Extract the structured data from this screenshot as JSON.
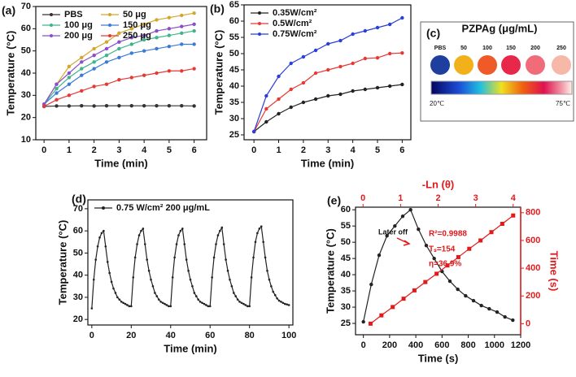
{
  "chart_data": [
    {
      "type": "line",
      "panel": "(a)",
      "xlabel": "Time (min)",
      "ylabel": "Temperature (°C)",
      "x": [
        0,
        0.5,
        1,
        1.5,
        2,
        2.5,
        3,
        3.5,
        4,
        4.5,
        5,
        5.5,
        6
      ],
      "xlim": [
        -0.33,
        6.5
      ],
      "xticks": [
        0,
        1,
        2,
        3,
        4,
        5,
        6
      ],
      "ylim": [
        10,
        70
      ],
      "yticks": [
        10,
        20,
        30,
        40,
        50,
        60,
        70
      ],
      "legend": "upper left",
      "series": [
        {
          "name": "PBS",
          "color": "#333333",
          "values": [
            25,
            25.2,
            25.2,
            25.3,
            25.2,
            25.3,
            25.3,
            25.3,
            25.3,
            25.3,
            25.3,
            25.3,
            25.2
          ]
        },
        {
          "name": "50 μg",
          "color": "#d4a62a",
          "values": [
            26,
            35,
            43,
            47,
            51,
            54,
            58,
            60,
            62,
            64,
            65,
            66,
            67
          ]
        },
        {
          "name": "100 μg",
          "color": "#3fb38a",
          "values": [
            26,
            33,
            38,
            42,
            45,
            48,
            51,
            53,
            55,
            56,
            57,
            58,
            59
          ]
        },
        {
          "name": "150 μg",
          "color": "#3a7bd5",
          "values": [
            26,
            31,
            35,
            39,
            42,
            45,
            47,
            49,
            50,
            51,
            52,
            53,
            53
          ]
        },
        {
          "name": "200 μg",
          "color": "#8a4fc8",
          "values": [
            26,
            35,
            40,
            45,
            48,
            51,
            54,
            56,
            57,
            59,
            60,
            61,
            62
          ]
        },
        {
          "name": "250 μg",
          "color": "#e53935",
          "values": [
            25,
            28,
            30,
            32,
            34,
            35,
            37,
            38,
            39,
            40,
            41,
            41,
            42
          ]
        }
      ]
    },
    {
      "type": "line",
      "panel": "(b)",
      "xlabel": "Time (min)",
      "ylabel": "Temperature (°C)",
      "x": [
        0,
        0.5,
        1,
        1.5,
        2,
        2.5,
        3,
        3.5,
        4,
        4.5,
        5,
        5.5,
        6
      ],
      "xlim": [
        -0.4,
        6.35
      ],
      "xticks": [
        0,
        1,
        2,
        3,
        4,
        5,
        6
      ],
      "ylim": [
        23.5,
        65
      ],
      "yticks": [
        25,
        30,
        35,
        40,
        45,
        50,
        55,
        60,
        65
      ],
      "legend": "upper left",
      "series": [
        {
          "name": "0.35W/cm²",
          "color": "#222222",
          "values": [
            26,
            29,
            31.5,
            33.5,
            35,
            36,
            37,
            37.5,
            38.5,
            39,
            39.5,
            40,
            40.5
          ]
        },
        {
          "name": "0.5W/cm²",
          "color": "#e53935",
          "values": [
            26,
            33,
            36,
            39,
            41,
            44,
            45,
            46,
            47,
            48.5,
            48.7,
            50,
            50.2
          ]
        },
        {
          "name": "0.75W/cm²",
          "color": "#2b3fd6",
          "values": [
            26,
            37,
            43,
            47,
            49,
            51,
            53,
            54,
            56,
            57,
            58,
            59,
            61
          ]
        }
      ]
    },
    {
      "type": "line",
      "panel": "(d)",
      "xlabel": "Time (min)",
      "ylabel": "Temperature (°C)",
      "x": [
        0,
        1,
        2,
        3,
        4,
        5,
        6,
        7,
        8,
        9,
        10,
        11,
        12,
        13,
        14,
        15,
        16,
        17,
        18,
        19,
        20,
        21,
        22,
        23,
        24,
        25,
        26,
        27,
        28,
        29,
        30,
        31,
        32,
        33,
        34,
        35,
        36,
        37,
        38,
        39,
        40,
        41,
        42,
        43,
        44,
        45,
        46,
        47,
        48,
        49,
        50,
        51,
        52,
        53,
        54,
        55,
        56,
        57,
        58,
        59,
        60,
        61,
        62,
        63,
        64,
        65,
        66,
        67,
        68,
        69,
        70,
        71,
        72,
        73,
        74,
        75,
        76,
        77,
        78,
        79,
        80,
        81,
        82,
        83,
        84,
        85,
        86,
        87,
        88,
        89,
        90,
        91,
        92,
        93,
        94,
        95,
        96,
        97,
        98,
        99,
        100
      ],
      "xlim": [
        -2,
        102
      ],
      "xticks": [
        0,
        20,
        40,
        60,
        80,
        100
      ],
      "ylim": [
        17.5,
        74
      ],
      "yticks": [
        20,
        30,
        40,
        50,
        60,
        70
      ],
      "legend": "upper left",
      "series": [
        {
          "name": "0.75 W/cm² 200 μg/mL",
          "color": "#222222",
          "values": [
            25,
            38,
            47,
            53,
            57,
            59,
            60,
            53,
            46,
            41,
            37,
            34,
            32,
            30,
            29,
            28,
            27.5,
            27,
            26.5,
            26,
            26,
            39,
            48,
            54,
            58,
            60,
            61,
            54,
            47,
            42,
            38,
            35,
            32,
            30.5,
            29,
            28,
            27.5,
            27,
            26.5,
            26,
            26,
            39,
            48,
            54,
            58,
            60,
            61,
            54,
            47,
            42,
            38,
            35,
            32,
            30.5,
            29,
            28,
            27.5,
            27,
            26.5,
            26,
            26,
            39,
            48,
            54,
            58,
            60,
            61.5,
            54,
            47,
            42,
            38,
            35,
            32,
            30.5,
            29,
            28,
            27.5,
            27,
            26.5,
            26,
            26,
            39,
            48,
            55,
            59,
            61,
            62,
            55,
            48,
            42,
            38,
            35,
            32.5,
            31,
            29.5,
            28.5,
            28,
            27.5,
            27,
            26.8,
            26.5
          ]
        }
      ]
    },
    {
      "type": "line",
      "panel": "(e)",
      "xlabel": "Time (s)",
      "ylabel": "Temperature (°C)",
      "x2label": "-Ln (θ)",
      "y2label": "Time (s)",
      "xlim": [
        -60,
        1200
      ],
      "xticks": [
        0,
        200,
        400,
        600,
        800,
        1000,
        1200
      ],
      "ylim": [
        21.5,
        60.8
      ],
      "yticks": [
        25,
        30,
        35,
        40,
        45,
        50,
        55,
        60
      ],
      "x2lim": [
        -0.2,
        4.2
      ],
      "x2ticks": [
        0,
        1,
        2,
        3,
        4
      ],
      "y2lim": [
        -80,
        840
      ],
      "y2ticks": [
        0,
        200,
        400,
        600,
        800
      ],
      "axis_color2": "#e31a1c",
      "annotations": [
        "Later off",
        "R²=0.9988",
        "Tₛ=154",
        "η=36.9%"
      ],
      "series": [
        {
          "color": "#222222",
          "x": [
            0,
            60,
            120,
            180,
            240,
            300,
            360,
            420,
            480,
            540,
            600,
            660,
            720,
            780,
            840,
            900,
            960,
            1020,
            1080,
            1140
          ],
          "values": [
            25.5,
            37,
            46,
            52,
            55,
            58,
            60,
            54,
            49,
            45,
            41,
            38,
            35.5,
            33.5,
            32,
            30.5,
            29.5,
            28.5,
            27,
            26
          ]
        },
        {
          "color": "#e31a1c",
          "axis": "y2",
          "xaxis": "x2",
          "marker": "square",
          "x": [
            0.2,
            0.49,
            0.79,
            1.08,
            1.37,
            1.66,
            1.96,
            2.25,
            2.54,
            2.83,
            3.13,
            3.42,
            3.71,
            4.0
          ],
          "values": [
            0,
            60,
            120,
            180,
            240,
            300,
            360,
            420,
            480,
            540,
            600,
            660,
            720,
            780
          ]
        }
      ]
    }
  ],
  "panel_c": {
    "panel": "(c)",
    "title": "PZPAg (μg/mL)",
    "samples": [
      "PBS",
      "50",
      "100",
      "150",
      "200",
      "250"
    ],
    "scale_min": "20℃",
    "scale_max": "75℃"
  }
}
